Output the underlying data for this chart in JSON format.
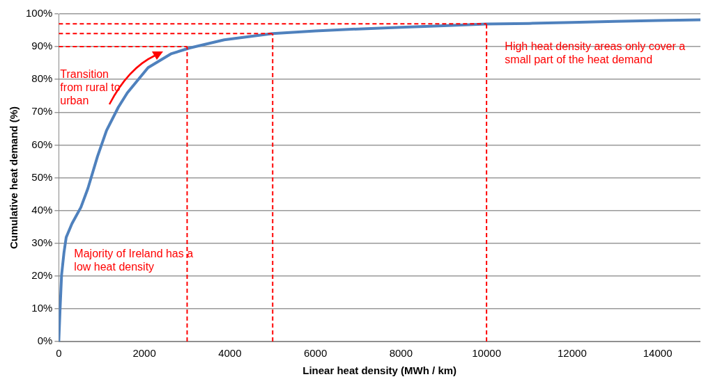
{
  "chart_data": {
    "type": "line",
    "xlabel": "Linear heat density (MWh / km)",
    "ylabel": "Cumulative heat demand (%)",
    "series": [
      {
        "color": "#4f81bd",
        "x": [
          0,
          30,
          65,
          120,
          173,
          308,
          518,
          680,
          905,
          1116,
          1391,
          1602,
          2087,
          2621,
          3058,
          3867,
          5000,
          6000,
          7000,
          8000,
          9000,
          10000,
          11000,
          12000,
          13000,
          14000,
          15000
        ],
        "values": [
          0,
          10,
          20.3,
          27,
          31.8,
          36,
          41,
          46.7,
          56.5,
          64.4,
          71.5,
          75.9,
          83.6,
          87.8,
          89.6,
          92.1,
          94,
          94.8,
          95.4,
          95.9,
          96.4,
          96.9,
          97.1,
          97.4,
          97.7,
          98,
          98.2
        ]
      }
    ],
    "xlim": [
      0,
      15000
    ],
    "xticks": [
      0,
      2000,
      4000,
      6000,
      8000,
      10000,
      12000,
      14000
    ],
    "ylim": [
      0,
      100
    ],
    "yticks": [
      {
        "value": 0,
        "label": "0%"
      },
      {
        "value": 10,
        "label": "10%"
      },
      {
        "value": 20,
        "label": "20%"
      },
      {
        "value": 30,
        "label": "30%"
      },
      {
        "value": 40,
        "label": "40%"
      },
      {
        "value": 50,
        "label": "50%"
      },
      {
        "value": 60,
        "label": "60%"
      },
      {
        "value": 70,
        "label": "70%"
      },
      {
        "value": 80,
        "label": "80%"
      },
      {
        "value": 90,
        "label": "90%"
      },
      {
        "value": 100,
        "label": "100%"
      }
    ],
    "grid": "y",
    "legend": false,
    "marker": "none",
    "line_style": "solid",
    "ref_lines": [
      {
        "axis": "x",
        "value": 3000,
        "color": "#ff0000",
        "line_style": "dashed"
      },
      {
        "axis": "x",
        "value": 5000,
        "color": "#ff0000",
        "line_style": "dashed"
      },
      {
        "axis": "x",
        "value": 10000,
        "color": "#ff0000",
        "line_style": "dashed"
      },
      {
        "axis": "y",
        "value": 90,
        "color": "#ff0000",
        "line_style": "dashed"
      },
      {
        "axis": "y",
        "value": 94,
        "color": "#ff0000",
        "line_style": "dashed"
      },
      {
        "axis": "y",
        "value": 97,
        "color": "#ff0000",
        "line_style": "dashed"
      }
    ],
    "annotations": [
      "Transition from rural to urban",
      "Majority of Ireland has a low heat density",
      "High heat density areas only cover a small part of the heat demand"
    ]
  }
}
